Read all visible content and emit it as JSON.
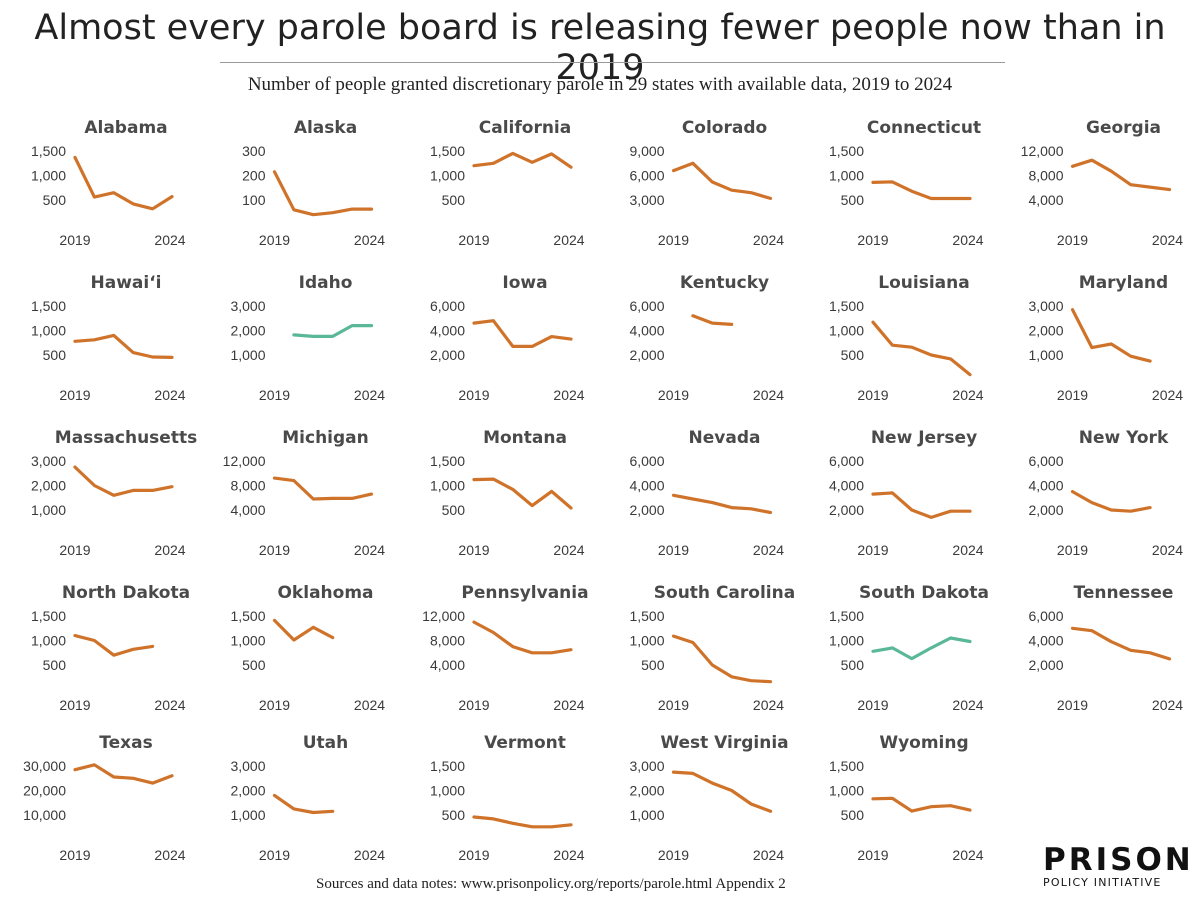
{
  "header": {
    "title": "Almost every parole board is releasing fewer people now than in 2019",
    "subtitle": "Number of people granted discretionary parole in 29 states with available data, 2019 to 2024"
  },
  "footer": {
    "sources": "Sources and data notes: www.prisonpolicy.org/reports/parole.html Appendix 2"
  },
  "logo": {
    "main": "PRISON",
    "sub": "POLICY INITIATIVE"
  },
  "colors": {
    "decline": "#d0732a",
    "increase": "#5ab898",
    "axis_text": "#333333"
  },
  "chart_data": [
    {
      "type": "line",
      "title": "Alabama",
      "x": [
        2019,
        2020,
        2021,
        2022,
        2023,
        2024
      ],
      "yticks": [
        "1,500",
        "1,000",
        "500"
      ],
      "ytick_values": [
        1500,
        1000,
        500
      ],
      "ylim": [
        0,
        1500
      ],
      "values": [
        1370,
        560,
        650,
        420,
        320,
        570
      ],
      "color": "decline",
      "xlabels": [
        "2019",
        "2024"
      ]
    },
    {
      "type": "line",
      "title": "Alaska",
      "x": [
        2019,
        2020,
        2021,
        2022,
        2023,
        2024
      ],
      "yticks": [
        "300",
        "200",
        "100"
      ],
      "ytick_values": [
        300,
        200,
        100
      ],
      "ylim": [
        0,
        300
      ],
      "values": [
        215,
        60,
        40,
        48,
        63,
        63
      ],
      "color": "decline",
      "xlabels": [
        "2019",
        "2024"
      ]
    },
    {
      "type": "line",
      "title": "California",
      "x": [
        2019,
        2020,
        2021,
        2022,
        2023,
        2024
      ],
      "yticks": [
        "1,500",
        "1,000",
        "500"
      ],
      "ytick_values": [
        1500,
        1000,
        500
      ],
      "ylim": [
        0,
        1500
      ],
      "values": [
        1200,
        1250,
        1450,
        1270,
        1440,
        1170
      ],
      "color": "decline",
      "xlabels": [
        "2019",
        "2024"
      ]
    },
    {
      "type": "line",
      "title": "Colorado",
      "x": [
        2019,
        2020,
        2021,
        2022,
        2023,
        2024
      ],
      "yticks": [
        "9,000",
        "6,000",
        "3,000"
      ],
      "ytick_values": [
        9000,
        6000,
        3000
      ],
      "ylim": [
        0,
        9000
      ],
      "values": [
        6600,
        7500,
        5200,
        4200,
        3900,
        3200
      ],
      "color": "decline",
      "xlabels": [
        "2019",
        "2024"
      ]
    },
    {
      "type": "line",
      "title": "Connecticut",
      "x": [
        2019,
        2020,
        2021,
        2022,
        2023,
        2024
      ],
      "yticks": [
        "1,500",
        "1,000",
        "500"
      ],
      "ytick_values": [
        1500,
        1000,
        500
      ],
      "ylim": [
        0,
        1500
      ],
      "values": [
        860,
        870,
        680,
        530,
        530,
        530
      ],
      "color": "decline",
      "xlabels": [
        "2019",
        "2024"
      ]
    },
    {
      "type": "line",
      "title": "Georgia",
      "x": [
        2019,
        2020,
        2021,
        2022,
        2023,
        2024
      ],
      "yticks": [
        "12,000",
        "8,000",
        "4,000"
      ],
      "ytick_values": [
        12000,
        8000,
        4000
      ],
      "ylim": [
        0,
        12000
      ],
      "values": [
        9500,
        10500,
        8700,
        6500,
        6100,
        5700
      ],
      "color": "decline",
      "xlabels": [
        "2019",
        "2024"
      ]
    },
    {
      "type": "line",
      "title": "Hawai‘i",
      "x": [
        2019,
        2020,
        2021,
        2022,
        2023,
        2024
      ],
      "yticks": [
        "1,500",
        "1,000",
        "500"
      ],
      "ytick_values": [
        1500,
        1000,
        500
      ],
      "ylim": [
        0,
        1500
      ],
      "values": [
        780,
        810,
        900,
        550,
        460,
        450
      ],
      "color": "decline",
      "xlabels": [
        "2019",
        "2024"
      ]
    },
    {
      "type": "line",
      "title": "Idaho",
      "x": [
        2019,
        2020,
        2021,
        2022,
        2023,
        2024
      ],
      "yticks": [
        "3,000",
        "2,000",
        "1,000"
      ],
      "ytick_values": [
        3000,
        2000,
        1000
      ],
      "ylim": [
        0,
        3000
      ],
      "values": [
        null,
        1820,
        1760,
        1760,
        2200,
        2200
      ],
      "color": "increase",
      "xlabels": [
        "2019",
        "2024"
      ]
    },
    {
      "type": "line",
      "title": "Iowa",
      "x": [
        2019,
        2020,
        2021,
        2022,
        2023,
        2024
      ],
      "yticks": [
        "6,000",
        "4,000",
        "2,000"
      ],
      "ytick_values": [
        6000,
        4000,
        2000
      ],
      "ylim": [
        0,
        6000
      ],
      "values": [
        4600,
        4800,
        2700,
        2700,
        3500,
        3300
      ],
      "color": "decline",
      "xlabels": [
        "2019",
        "2024"
      ]
    },
    {
      "type": "line",
      "title": "Kentucky",
      "x": [
        2019,
        2020,
        2021,
        2022,
        2023,
        2024
      ],
      "yticks": [
        "6,000",
        "4,000",
        "2,000"
      ],
      "ytick_values": [
        6000,
        4000,
        2000
      ],
      "ylim": [
        0,
        6000
      ],
      "values": [
        null,
        5200,
        4600,
        4500,
        null,
        null
      ],
      "color": "decline",
      "xlabels": [
        "2019",
        "2024"
      ]
    },
    {
      "type": "line",
      "title": "Louisiana",
      "x": [
        2019,
        2020,
        2021,
        2022,
        2023,
        2024
      ],
      "yticks": [
        "1,500",
        "1,000",
        "500"
      ],
      "ytick_values": [
        1500,
        1000,
        500
      ],
      "ylim": [
        0,
        1500
      ],
      "values": [
        1170,
        700,
        660,
        500,
        420,
        100
      ],
      "color": "decline",
      "xlabels": [
        "2019",
        "2024"
      ]
    },
    {
      "type": "line",
      "title": "Maryland",
      "x": [
        2019,
        2020,
        2021,
        2022,
        2023,
        2024
      ],
      "yticks": [
        "3,000",
        "2,000",
        "1,000"
      ],
      "ytick_values": [
        3000,
        2000,
        1000
      ],
      "ylim": [
        0,
        3000
      ],
      "values": [
        2850,
        1300,
        1450,
        950,
        750,
        null
      ],
      "color": "decline",
      "xlabels": [
        "2019",
        "2024"
      ]
    },
    {
      "type": "line",
      "title": "Massachusetts",
      "x": [
        2019,
        2020,
        2021,
        2022,
        2023,
        2024
      ],
      "yticks": [
        "3,000",
        "2,000",
        "1,000"
      ],
      "ytick_values": [
        3000,
        2000,
        1000
      ],
      "ylim": [
        0,
        3000
      ],
      "values": [
        2750,
        2000,
        1600,
        1800,
        1800,
        1950
      ],
      "color": "decline",
      "xlabels": [
        "2019",
        "2024"
      ]
    },
    {
      "type": "line",
      "title": "Michigan",
      "x": [
        2019,
        2020,
        2021,
        2022,
        2023,
        2024
      ],
      "yticks": [
        "12,000",
        "8,000",
        "4,000"
      ],
      "ytick_values": [
        12000,
        8000,
        4000
      ],
      "ylim": [
        0,
        12000
      ],
      "values": [
        9200,
        8800,
        5800,
        5900,
        5900,
        6600
      ],
      "color": "decline",
      "xlabels": [
        "2019",
        "2024"
      ]
    },
    {
      "type": "line",
      "title": "Montana",
      "x": [
        2019,
        2020,
        2021,
        2022,
        2023,
        2024
      ],
      "yticks": [
        "1,500",
        "1,000",
        "500"
      ],
      "ytick_values": [
        1500,
        1000,
        500
      ],
      "ylim": [
        0,
        1500
      ],
      "values": [
        1120,
        1130,
        920,
        590,
        880,
        540
      ],
      "color": "decline",
      "xlabels": [
        "2019",
        "2024"
      ]
    },
    {
      "type": "line",
      "title": "Nevada",
      "x": [
        2019,
        2020,
        2021,
        2022,
        2023,
        2024
      ],
      "yticks": [
        "6,000",
        "4,000",
        "2,000"
      ],
      "ytick_values": [
        6000,
        4000,
        2000
      ],
      "ylim": [
        0,
        6000
      ],
      "values": [
        3200,
        2900,
        2600,
        2200,
        2100,
        1800
      ],
      "color": "decline",
      "xlabels": [
        "2019",
        "2024"
      ]
    },
    {
      "type": "line",
      "title": "New Jersey",
      "x": [
        2019,
        2020,
        2021,
        2022,
        2023,
        2024
      ],
      "yticks": [
        "6,000",
        "4,000",
        "2,000"
      ],
      "ytick_values": [
        6000,
        4000,
        2000
      ],
      "ylim": [
        0,
        6000
      ],
      "values": [
        3300,
        3400,
        2000,
        1400,
        1900,
        1900
      ],
      "color": "decline",
      "xlabels": [
        "2019",
        "2024"
      ]
    },
    {
      "type": "line",
      "title": "New York",
      "x": [
        2019,
        2020,
        2021,
        2022,
        2023,
        2024
      ],
      "yticks": [
        "6,000",
        "4,000",
        "2,000"
      ],
      "ytick_values": [
        6000,
        4000,
        2000
      ],
      "ylim": [
        0,
        6000
      ],
      "values": [
        3500,
        2600,
        2000,
        1900,
        2200,
        null
      ],
      "color": "decline",
      "xlabels": [
        "2019",
        "2024"
      ]
    },
    {
      "type": "line",
      "title": "North Dakota",
      "x": [
        2019,
        2020,
        2021,
        2022,
        2023,
        2024
      ],
      "yticks": [
        "1,500",
        "1,000",
        "500"
      ],
      "ytick_values": [
        1500,
        1000,
        500
      ],
      "ylim": [
        0,
        1500
      ],
      "values": [
        1100,
        1000,
        700,
        820,
        880,
        null
      ],
      "color": "decline",
      "xlabels": [
        "2019",
        "2024"
      ]
    },
    {
      "type": "line",
      "title": "Oklahoma",
      "x": [
        2019,
        2020,
        2021,
        2022,
        2023,
        2024
      ],
      "yticks": [
        "1,500",
        "1,000",
        "500"
      ],
      "ytick_values": [
        1500,
        1000,
        500
      ],
      "ylim": [
        0,
        1500
      ],
      "values": [
        1410,
        1010,
        1270,
        1060,
        null,
        null
      ],
      "color": "decline",
      "xlabels": [
        "2019",
        "2024"
      ]
    },
    {
      "type": "line",
      "title": "Pennsylvania",
      "x": [
        2019,
        2020,
        2021,
        2022,
        2023,
        2024
      ],
      "yticks": [
        "12,000",
        "8,000",
        "4,000"
      ],
      "ytick_values": [
        12000,
        8000,
        4000
      ],
      "ylim": [
        0,
        12000
      ],
      "values": [
        11000,
        9300,
        7000,
        6000,
        6000,
        6500
      ],
      "color": "decline",
      "xlabels": [
        "2019",
        "2024"
      ]
    },
    {
      "type": "line",
      "title": "South Carolina",
      "x": [
        2019,
        2020,
        2021,
        2022,
        2023,
        2024
      ],
      "yticks": [
        "1,500",
        "1,000",
        "500"
      ],
      "ytick_values": [
        1500,
        1000,
        500
      ],
      "ylim": [
        0,
        1500
      ],
      "values": [
        1090,
        960,
        500,
        260,
        180,
        160
      ],
      "color": "decline",
      "xlabels": [
        "2019",
        "2024"
      ]
    },
    {
      "type": "line",
      "title": "South Dakota",
      "x": [
        2019,
        2020,
        2021,
        2022,
        2023,
        2024
      ],
      "yticks": [
        "1,500",
        "1,000",
        "500"
      ],
      "ytick_values": [
        1500,
        1000,
        500
      ],
      "ylim": [
        0,
        1500
      ],
      "values": [
        780,
        850,
        630,
        850,
        1050,
        980
      ],
      "color": "increase",
      "xlabels": [
        "2019",
        "2024"
      ]
    },
    {
      "type": "line",
      "title": "Tennessee",
      "x": [
        2019,
        2020,
        2021,
        2022,
        2023,
        2024
      ],
      "yticks": [
        "6,000",
        "4,000",
        "2,000"
      ],
      "ytick_values": [
        6000,
        4000,
        2000
      ],
      "ylim": [
        0,
        6000
      ],
      "values": [
        5000,
        4800,
        3900,
        3200,
        3000,
        2500
      ],
      "color": "decline",
      "xlabels": [
        "2019",
        "2024"
      ]
    },
    {
      "type": "line",
      "title": "Texas",
      "x": [
        2019,
        2020,
        2021,
        2022,
        2023,
        2024
      ],
      "yticks": [
        "30,000",
        "20,000",
        "10,000"
      ],
      "ytick_values": [
        30000,
        20000,
        10000
      ],
      "ylim": [
        0,
        30000
      ],
      "values": [
        28500,
        30500,
        25500,
        25000,
        23000,
        26000
      ],
      "color": "decline",
      "xlabels": [
        "2019",
        "2024"
      ]
    },
    {
      "type": "line",
      "title": "Utah",
      "x": [
        2019,
        2020,
        2021,
        2022,
        2023,
        2024
      ],
      "yticks": [
        "3,000",
        "2,000",
        "1,000"
      ],
      "ytick_values": [
        3000,
        2000,
        1000
      ],
      "ylim": [
        0,
        3000
      ],
      "values": [
        1800,
        1250,
        1100,
        1150,
        null,
        null
      ],
      "color": "decline",
      "xlabels": [
        "2019",
        "2024"
      ]
    },
    {
      "type": "line",
      "title": "Vermont",
      "x": [
        2019,
        2020,
        2021,
        2022,
        2023,
        2024
      ],
      "yticks": [
        "1,500",
        "1,000",
        "500"
      ],
      "ytick_values": [
        1500,
        1000,
        500
      ],
      "ylim": [
        0,
        1500
      ],
      "values": [
        460,
        420,
        330,
        260,
        260,
        300
      ],
      "color": "decline",
      "xlabels": [
        "2019",
        "2024"
      ]
    },
    {
      "type": "line",
      "title": "West Virginia",
      "x": [
        2019,
        2020,
        2021,
        2022,
        2023,
        2024
      ],
      "yticks": [
        "3,000",
        "2,000",
        "1,000"
      ],
      "ytick_values": [
        3000,
        2000,
        1000
      ],
      "ylim": [
        0,
        3000
      ],
      "values": [
        2750,
        2700,
        2300,
        2000,
        1450,
        1150
      ],
      "color": "decline",
      "xlabels": [
        "2019",
        "2024"
      ]
    },
    {
      "type": "line",
      "title": "Wyoming",
      "x": [
        2019,
        2020,
        2021,
        2022,
        2023,
        2024
      ],
      "yticks": [
        "1,500",
        "1,000",
        "500"
      ],
      "ytick_values": [
        1500,
        1000,
        500
      ],
      "ylim": [
        0,
        1500
      ],
      "values": [
        830,
        840,
        580,
        670,
        690,
        600
      ],
      "color": "decline",
      "xlabels": [
        "2019",
        "2024"
      ]
    }
  ]
}
